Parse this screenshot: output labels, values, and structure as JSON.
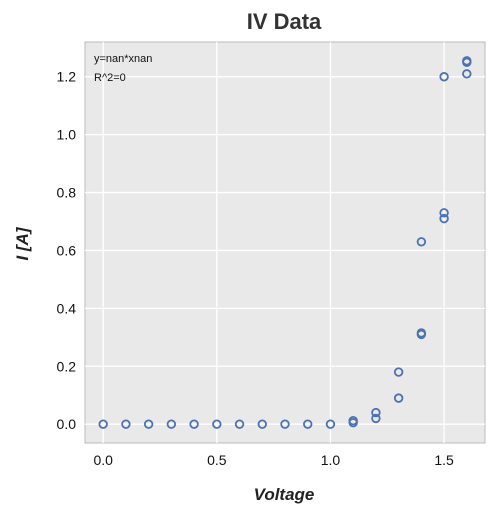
{
  "chart_data": {
    "type": "scatter",
    "title": "IV Data",
    "xlabel": "Voltage",
    "ylabel": "I [A]",
    "xlim": [
      -0.08,
      1.68
    ],
    "ylim": [
      -0.065,
      1.32
    ],
    "xticks": [
      "0.0",
      "0.5",
      "1.0",
      "1.5"
    ],
    "yticks": [
      "0.0",
      "0.2",
      "0.4",
      "0.6",
      "0.8",
      "1.0",
      "1.2"
    ],
    "grid": true,
    "annotations": [
      "y=nan*xnan",
      "R^2=0"
    ],
    "colors": {
      "background": "#e9e9e9",
      "grid": "#ffffff",
      "marker": "#4c72b0",
      "frame": "#bbbbbb"
    },
    "series": [
      {
        "marker": "open-circle",
        "points": [
          [
            0.0,
            0.0
          ],
          [
            0.1,
            0.0
          ],
          [
            0.2,
            0.0
          ],
          [
            0.3,
            0.0
          ],
          [
            0.4,
            0.0
          ],
          [
            0.5,
            0.0
          ],
          [
            0.6,
            0.0
          ],
          [
            0.7,
            0.0
          ],
          [
            0.8,
            0.0
          ],
          [
            0.9,
            0.0
          ],
          [
            1.0,
            0.0
          ],
          [
            1.1,
            0.005
          ],
          [
            1.1,
            0.012
          ],
          [
            1.2,
            0.02
          ],
          [
            1.2,
            0.04
          ],
          [
            1.3,
            0.09
          ],
          [
            1.3,
            0.18
          ],
          [
            1.4,
            0.31
          ],
          [
            1.4,
            0.315
          ],
          [
            1.4,
            0.63
          ],
          [
            1.5,
            0.71
          ],
          [
            1.5,
            0.73
          ],
          [
            1.5,
            1.2
          ],
          [
            1.6,
            1.21
          ],
          [
            1.6,
            1.25
          ],
          [
            1.6,
            1.255
          ]
        ]
      }
    ]
  }
}
